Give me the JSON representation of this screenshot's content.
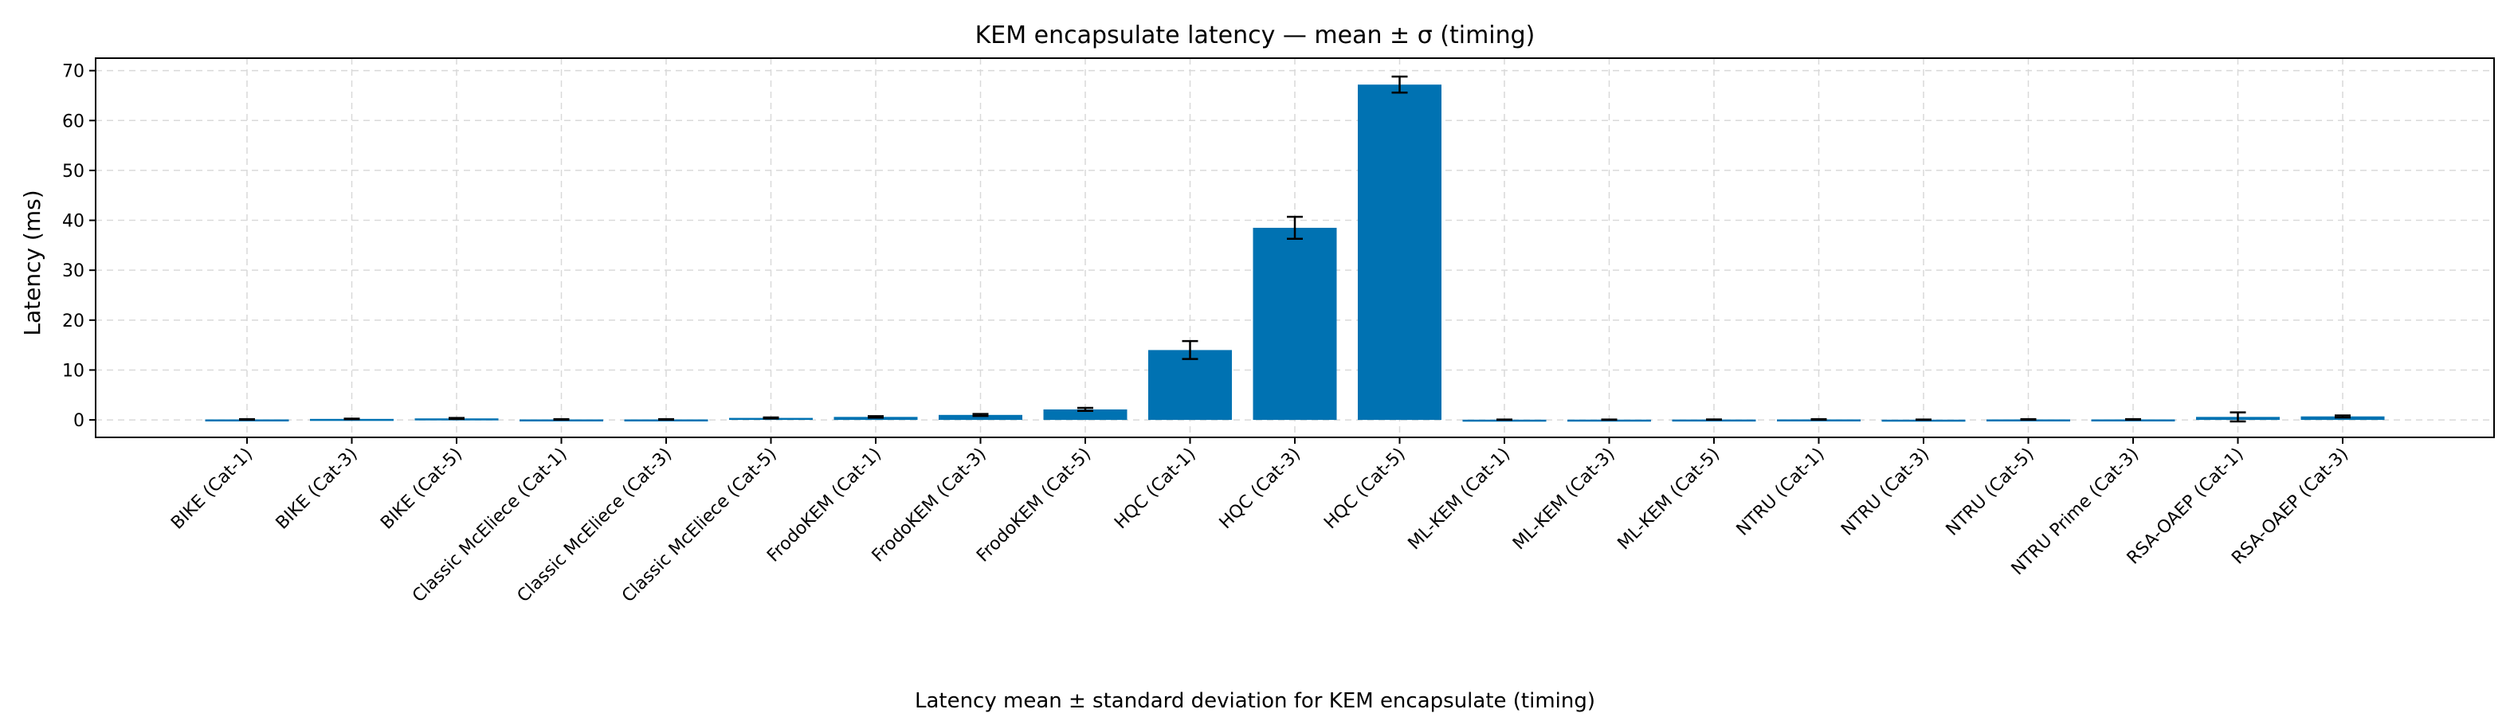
{
  "chart_data": {
    "type": "bar",
    "title": "KEM encapsulate latency — mean ± σ (timing)",
    "xlabel": "",
    "ylabel": "Latency (ms)",
    "caption": "Latency mean ± standard deviation for KEM encapsulate (timing)",
    "ylim": [
      -3.5,
      72.5
    ],
    "yticks": [
      0,
      10,
      20,
      30,
      40,
      50,
      60,
      70
    ],
    "grid": true,
    "bar_color": "#0072b2",
    "categories": [
      "BIKE (Cat-1)",
      "BIKE (Cat-3)",
      "BIKE (Cat-5)",
      "Classic McEliece (Cat-1)",
      "Classic McEliece (Cat-3)",
      "Classic McEliece (Cat-5)",
      "FrodoKEM (Cat-1)",
      "FrodoKEM (Cat-3)",
      "FrodoKEM (Cat-5)",
      "HQC (Cat-1)",
      "HQC (Cat-3)",
      "HQC (Cat-5)",
      "ML-KEM (Cat-1)",
      "ML-KEM (Cat-3)",
      "ML-KEM (Cat-5)",
      "NTRU (Cat-1)",
      "NTRU (Cat-3)",
      "NTRU (Cat-5)",
      "NTRU Prime (Cat-3)",
      "RSA-OAEP (Cat-1)",
      "RSA-OAEP (Cat-3)"
    ],
    "values": [
      0.1,
      0.2,
      0.3,
      0.1,
      0.1,
      0.4,
      0.6,
      1.0,
      2.1,
      14.0,
      38.5,
      67.2,
      0.05,
      0.06,
      0.08,
      0.1,
      0.05,
      0.1,
      0.1,
      0.6,
      0.7
    ],
    "errors": [
      0.05,
      0.05,
      0.1,
      0.05,
      0.05,
      0.1,
      0.15,
      0.2,
      0.3,
      1.8,
      2.2,
      1.6,
      0.02,
      0.02,
      0.02,
      0.05,
      0.02,
      0.05,
      0.05,
      0.9,
      0.2
    ]
  }
}
